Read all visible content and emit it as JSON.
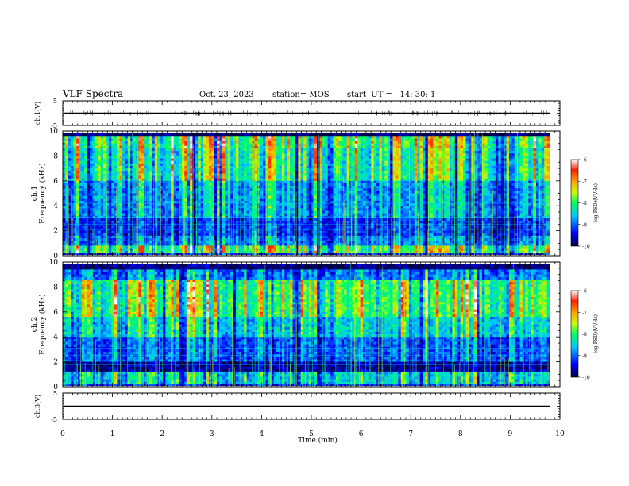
{
  "header": {
    "title": "VLF Spectra",
    "date": "Oct. 23, 2023",
    "station": "station= MOS",
    "start": "start  UT =   14: 30: 1"
  },
  "chart_data": [
    {
      "type": "line",
      "panel": "top-waveform",
      "ylabel": "ch.1(V)",
      "ylim": [
        -5,
        5
      ],
      "yticks": [
        "5",
        "-5"
      ],
      "series": [
        {
          "values": [
            0
          ]
        }
      ]
    },
    {
      "type": "heatmap",
      "panel": "spectrogram-ch1",
      "ylabel": "ch.1\nFrequency (kHz)",
      "ylabel_line1": "ch.1",
      "ylabel_line2": "Frequency  (kHz)",
      "ylim": [
        0,
        10
      ],
      "yticks": [
        "0",
        "2",
        "4",
        "6",
        "8",
        "10"
      ],
      "colorbar": {
        "label": "log(PSD)(V²/Hz)",
        "ticks": [
          "-6",
          "-7",
          "-8",
          "-9",
          "-10"
        ],
        "range": [
          -10,
          -6
        ]
      }
    },
    {
      "type": "heatmap",
      "panel": "spectrogram-ch2",
      "ylabel_line1": "ch.2",
      "ylabel_line2": "Frequency  (kHz)",
      "ylim": [
        0,
        10
      ],
      "yticks": [
        "0",
        "2",
        "4",
        "6",
        "8",
        "10"
      ],
      "colorbar": {
        "label": "log(PSD)(V²/Hz)",
        "ticks": [
          "-6",
          "-7",
          "-8",
          "-9",
          "-10"
        ],
        "range": [
          -10,
          -6
        ]
      }
    },
    {
      "type": "line",
      "panel": "bottom-waveform",
      "ylabel": "ch.3(V)",
      "ylim": [
        -5,
        5
      ],
      "yticks": [
        "5",
        "-5"
      ],
      "xlabel": "Time  (min)",
      "xlim": [
        0,
        10
      ],
      "xticks": [
        "0",
        "1",
        "2",
        "3",
        "4",
        "5",
        "6",
        "7",
        "8",
        "9",
        "10"
      ],
      "series": [
        {
          "values": [
            0
          ]
        }
      ]
    }
  ],
  "colors": {
    "scale": [
      "#00007a",
      "#0000ff",
      "#00c8ff",
      "#00ff80",
      "#c8ff00",
      "#ffd000",
      "#ff3000",
      "#ffffff"
    ]
  }
}
